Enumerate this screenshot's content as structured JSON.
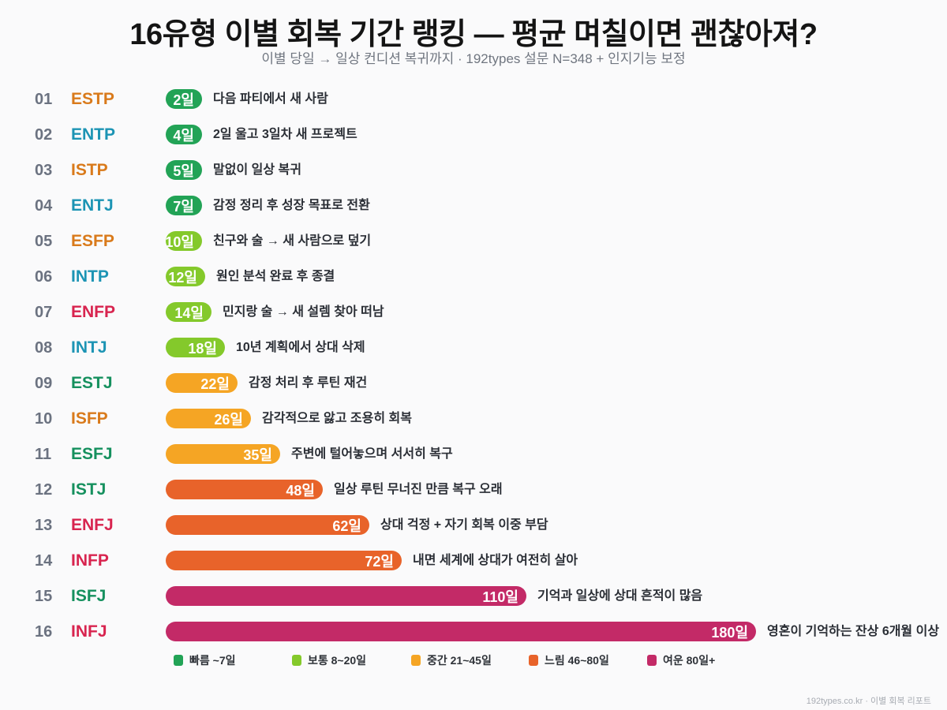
{
  "header": {
    "title": "16유형 이별 회복 기간 랭킹 — 평균 며칠이면 괜찮아져?",
    "subtitle": "이별 당일 → 일상 컨디션 복귀까지 · 192types 설문 N=348 + 인지기능 보정"
  },
  "colors": {
    "tiers": {
      "fast": "#22a356",
      "normal": "#84c92b",
      "mid": "#f5a524",
      "slow": "#e8632a",
      "lingering": "#c32a67"
    },
    "types": {
      "SP": "#d97a1b",
      "NT": "#1c94b4",
      "NF": "#d8244f",
      "SJ": "#15905e"
    }
  },
  "chart_data": {
    "type": "bar",
    "orientation": "horizontal",
    "title": "16유형 이별 회복 기간 랭킹 — 평균 며칠이면 괜찮아져?",
    "subtitle": "이별 당일 → 일상 컨디션 복귀까지 · 192types 설문 N=348 + 인지기능 보정",
    "xlabel": "",
    "ylabel": "",
    "unit": "일",
    "xlim": [
      0,
      180
    ],
    "grid": false,
    "legend_position": "bottom",
    "categories": [
      "ESTP",
      "ENTP",
      "ISTP",
      "ENTJ",
      "ESFP",
      "INTP",
      "ENFP",
      "INTJ",
      "ESTJ",
      "ISFP",
      "ESFJ",
      "ISTJ",
      "ENFJ",
      "INFP",
      "ISFJ",
      "INFJ"
    ],
    "values": [
      2,
      4,
      5,
      7,
      10,
      12,
      14,
      18,
      22,
      26,
      35,
      48,
      62,
      72,
      110,
      180
    ],
    "rows": [
      {
        "rank": "01",
        "type": "ESTP",
        "group": "SP",
        "days": 2,
        "label": "2일",
        "tier": "fast",
        "desc": "다음 파티에서 새 사람"
      },
      {
        "rank": "02",
        "type": "ENTP",
        "group": "NT",
        "days": 4,
        "label": "4일",
        "tier": "fast",
        "desc": "2일 울고 3일차 새 프로젝트"
      },
      {
        "rank": "03",
        "type": "ISTP",
        "group": "SP",
        "days": 5,
        "label": "5일",
        "tier": "fast",
        "desc": "말없이 일상 복귀"
      },
      {
        "rank": "04",
        "type": "ENTJ",
        "group": "NT",
        "days": 7,
        "label": "7일",
        "tier": "fast",
        "desc": "감정 정리 후 성장 목표로 전환"
      },
      {
        "rank": "05",
        "type": "ESFP",
        "group": "SP",
        "days": 10,
        "label": "10일",
        "tier": "normal",
        "desc": "친구와 술 → 새 사람으로 덮기"
      },
      {
        "rank": "06",
        "type": "INTP",
        "group": "NT",
        "days": 12,
        "label": "12일",
        "tier": "normal",
        "desc": "원인 분석 완료 후 종결"
      },
      {
        "rank": "07",
        "type": "ENFP",
        "group": "NF",
        "days": 14,
        "label": "14일",
        "tier": "normal",
        "desc": "민지랑 술 → 새 설렘 찾아 떠남"
      },
      {
        "rank": "08",
        "type": "INTJ",
        "group": "NT",
        "days": 18,
        "label": "18일",
        "tier": "normal",
        "desc": "10년 계획에서 상대 삭제"
      },
      {
        "rank": "09",
        "type": "ESTJ",
        "group": "SJ",
        "days": 22,
        "label": "22일",
        "tier": "mid",
        "desc": "감정 처리 후 루틴 재건"
      },
      {
        "rank": "10",
        "type": "ISFP",
        "group": "SP",
        "days": 26,
        "label": "26일",
        "tier": "mid",
        "desc": "감각적으로 앓고 조용히 회복"
      },
      {
        "rank": "11",
        "type": "ESFJ",
        "group": "SJ",
        "days": 35,
        "label": "35일",
        "tier": "mid",
        "desc": "주변에 털어놓으며 서서히 복구"
      },
      {
        "rank": "12",
        "type": "ISTJ",
        "group": "SJ",
        "days": 48,
        "label": "48일",
        "tier": "slow",
        "desc": "일상 루틴 무너진 만큼 복구 오래"
      },
      {
        "rank": "13",
        "type": "ENFJ",
        "group": "NF",
        "days": 62,
        "label": "62일",
        "tier": "slow",
        "desc": "상대 걱정 + 자기 회복 이중 부담"
      },
      {
        "rank": "14",
        "type": "INFP",
        "group": "NF",
        "days": 72,
        "label": "72일",
        "tier": "slow",
        "desc": "내면 세계에 상대가 여전히 살아"
      },
      {
        "rank": "15",
        "type": "ISFJ",
        "group": "SJ",
        "days": 110,
        "label": "110일",
        "tier": "lingering",
        "desc": "기억과 일상에 상대 흔적이 많음"
      },
      {
        "rank": "16",
        "type": "INFJ",
        "group": "NF",
        "days": 180,
        "label": "180일",
        "tier": "lingering",
        "desc": "영혼이 기억하는 잔상 6개월 이상"
      }
    ],
    "legend": [
      {
        "tier": "fast",
        "label": "빠름 ~7일"
      },
      {
        "tier": "normal",
        "label": "보통 8~20일"
      },
      {
        "tier": "mid",
        "label": "중간 21~45일"
      },
      {
        "tier": "slow",
        "label": "느림 46~80일"
      },
      {
        "tier": "lingering",
        "label": "여운 80일+"
      }
    ]
  },
  "footer": {
    "text": "192types.co.kr · 이별 회복 리포트"
  }
}
